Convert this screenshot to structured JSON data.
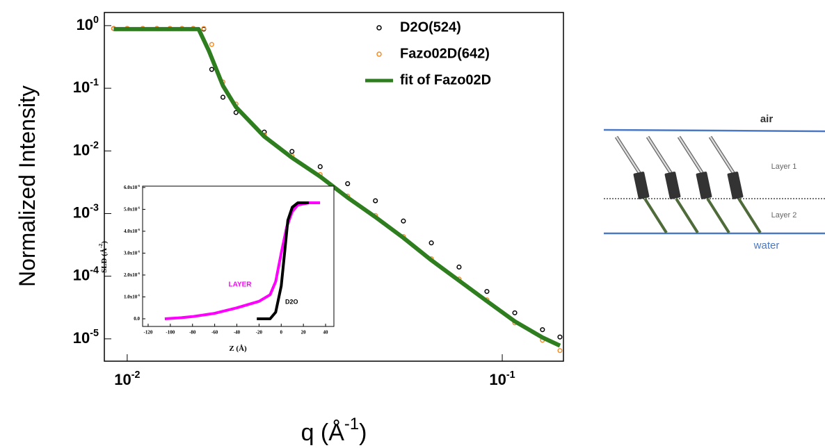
{
  "chart_data": [
    {
      "type": "scatter",
      "x_label": [
        "q (Å",
        "-1",
        ")"
      ],
      "y_label": [
        "Normalized Intensity"
      ],
      "x_log": true,
      "y_log": true,
      "xlim": [
        0.00869,
        0.1456
      ],
      "ylim": [
        4.4e-06,
        1.62
      ],
      "xticks": [
        {
          "value": 0.01,
          "label": "10",
          "exponent": "-2"
        },
        {
          "value": 0.1,
          "label": "10",
          "exponent": "-1"
        }
      ],
      "yticks": [
        {
          "value": 1,
          "label": "10",
          "exponent": "0"
        },
        {
          "value": 0.1,
          "label": "10",
          "exponent": "-1"
        },
        {
          "value": 0.01,
          "label": "10",
          "exponent": "-2"
        },
        {
          "value": 0.001,
          "label": "10",
          "exponent": "-3"
        },
        {
          "value": 0.0001,
          "label": "10",
          "exponent": "-4"
        },
        {
          "value": 1e-05,
          "label": "10",
          "exponent": "-5"
        }
      ],
      "legend": "upper right",
      "series": [
        {
          "name": "D2O(524)",
          "color": "#000000",
          "style": "dots",
          "x": [
            0.0092,
            0.01,
            0.011,
            0.012,
            0.013,
            0.014,
            0.015,
            0.016,
            0.0168,
            0.018,
            0.0195,
            0.0232,
            0.0275,
            0.0327,
            0.0387,
            0.0459,
            0.0545,
            0.0647,
            0.0767,
            0.091,
            0.108,
            0.128,
            0.1425
          ],
          "values": [
            0.9,
            0.9,
            0.9,
            0.9,
            0.9,
            0.9,
            0.9,
            0.88,
            0.2,
            0.072,
            0.041,
            0.02,
            0.0098,
            0.0056,
            0.003,
            0.0016,
            0.00076,
            0.00034,
            0.00014,
            5.7e-05,
            2.6e-05,
            1.4e-05,
            1.07e-05
          ]
        },
        {
          "name": "Fazo02D(642)",
          "color": "#f28c28",
          "style": "dots",
          "x": [
            0.0092,
            0.01,
            0.011,
            0.012,
            0.013,
            0.014,
            0.015,
            0.016,
            0.0168,
            0.018,
            0.0195,
            0.0232,
            0.0275,
            0.0327,
            0.0387,
            0.0459,
            0.0545,
            0.0647,
            0.0767,
            0.091,
            0.108,
            0.128,
            0.1425
          ],
          "values": [
            0.9,
            0.9,
            0.9,
            0.9,
            0.9,
            0.9,
            0.9,
            0.9,
            0.5,
            0.126,
            0.056,
            0.018,
            0.0083,
            0.0042,
            0.0019,
            0.00093,
            0.00043,
            0.00019,
            9e-05,
            4.2e-05,
            1.8e-05,
            9.5e-06,
            6.5e-06
          ]
        },
        {
          "name": "fit of Fazo02D",
          "color": "#2e7d1e",
          "style": "line",
          "x": [
            0.0092,
            0.012,
            0.0155,
            0.0165,
            0.018,
            0.0195,
            0.0232,
            0.0275,
            0.0327,
            0.0387,
            0.0459,
            0.0545,
            0.0647,
            0.0767,
            0.091,
            0.108,
            0.128,
            0.1425
          ],
          "values": [
            0.88,
            0.88,
            0.88,
            0.4,
            0.11,
            0.05,
            0.017,
            0.0078,
            0.0039,
            0.0018,
            0.00088,
            0.00041,
            0.00018,
            8.5e-05,
            4e-05,
            1.9e-05,
            1.05e-05,
            7.8e-06
          ]
        }
      ]
    },
    {
      "type": "scatter",
      "x_label": [
        "Z (Å)"
      ],
      "y_label": [
        "SLD (Å",
        "-2",
        ")"
      ],
      "x_log": false,
      "y_log": false,
      "xlim": [
        -125,
        47.5
      ],
      "ylim": [
        -3.5e-07,
        6.06e-06
      ],
      "xticks": [
        -120,
        -100,
        -80,
        -60,
        -40,
        -20,
        0,
        20,
        40
      ],
      "yticks": [
        {
          "value": 0,
          "label": "0.0"
        },
        {
          "value": 1e-06,
          "label": "1.0x10",
          "exponent": "-6"
        },
        {
          "value": 2e-06,
          "label": "2.0x10",
          "exponent": "-6"
        },
        {
          "value": 3e-06,
          "label": "3.0x10",
          "exponent": "-6"
        },
        {
          "value": 4e-06,
          "label": "4.0x10",
          "exponent": "-6"
        },
        {
          "value": 5e-06,
          "label": "5.0x10",
          "exponent": "-6"
        },
        {
          "value": 6e-06,
          "label": "6.0x10",
          "exponent": "-6"
        }
      ],
      "series": [
        {
          "name": "LAYER",
          "color": "#ff00ff",
          "style": "line",
          "x": [
            -105,
            -90,
            -80,
            -60,
            -40,
            -20,
            -10,
            -5,
            0,
            5,
            10,
            15,
            25,
            35
          ],
          "values": [
            0,
            5e-08,
            1e-07,
            2.5e-07,
            5e-07,
            8e-07,
            1.1e-06,
            1.7e-06,
            3e-06,
            4.2e-06,
            4.9e-06,
            5.2e-06,
            5.3e-06,
            5.3e-06
          ]
        },
        {
          "name": "D2O",
          "color": "#000000",
          "style": "line",
          "x": [
            -22,
            -15,
            -10,
            -5,
            0,
            3,
            6,
            10,
            15,
            20,
            25
          ],
          "values": [
            0,
            0,
            0,
            3e-07,
            1.5e-06,
            3e-06,
            4.5e-06,
            5.1e-06,
            5.3e-06,
            5.3e-06,
            5.3e-06
          ]
        }
      ]
    }
  ],
  "diagram": {
    "labels": {
      "air": "air",
      "layer1": "Layer 1",
      "layer2": "Layer 2",
      "water": "water"
    }
  }
}
